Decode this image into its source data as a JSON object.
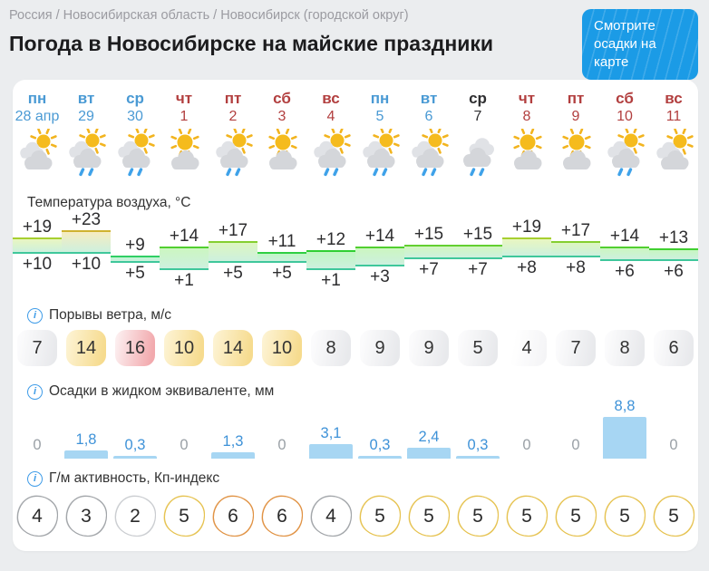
{
  "page": {
    "breadcrumb": "Россия / Новосибирская область / Новосибирск (городской округ)",
    "title": "Погода в Новосибирске на майские праздники",
    "map_button": "Смотрите осадки на карте"
  },
  "icons": {
    "info_glyph": "i"
  },
  "colors": {
    "page_background": "#ebedef",
    "card_background": "#ffffff",
    "accent_blue": "#1b9be6",
    "weekday_blue": "#4a9ad4",
    "weekend_red": "#b23f3f",
    "today_black": "#2e2e30",
    "precip_bar": "#a7d6f3",
    "precip_text": "#3e92d8",
    "temp_low_line": "#3fc79b"
  },
  "sections": {
    "temperature": "Температура воздуха, °C",
    "wind": "Порывы ветра, м/с",
    "precipitation": "Осадки в жидком эквиваленте, мм",
    "geomagnetic": "Г/м активность, Кп-индекс"
  },
  "days": [
    {
      "dow": "пн",
      "date": "28 апр",
      "color": "weekday",
      "icon": "sun-clouds",
      "high": "+19",
      "low": "+10",
      "wind": 7,
      "wind_level": "gray",
      "precip": "0",
      "precip_value": 0,
      "kp": 4,
      "kp_level": "gray"
    },
    {
      "dow": "вт",
      "date": "29",
      "color": "weekday",
      "icon": "sun-clouds-rain",
      "high": "+23",
      "low": "+10",
      "wind": 14,
      "wind_level": "yellow",
      "precip": "1,8",
      "precip_value": 1.8,
      "kp": 3,
      "kp_level": "gray"
    },
    {
      "dow": "ср",
      "date": "30",
      "color": "weekday",
      "icon": "sun-clouds-rain",
      "high": "+9",
      "low": "+5",
      "wind": 16,
      "wind_level": "red",
      "precip": "0,3",
      "precip_value": 0.3,
      "kp": 2,
      "kp_level": "gray-light"
    },
    {
      "dow": "чт",
      "date": "1",
      "color": "weekend",
      "icon": "sun-cloud",
      "high": "+14",
      "low": "+1",
      "wind": 10,
      "wind_level": "yellow",
      "precip": "0",
      "precip_value": 0,
      "kp": 5,
      "kp_level": "yellow"
    },
    {
      "dow": "пт",
      "date": "2",
      "color": "weekend",
      "icon": "sun-clouds-rain",
      "high": "+17",
      "low": "+5",
      "wind": 14,
      "wind_level": "yellow",
      "precip": "1,3",
      "precip_value": 1.3,
      "kp": 6,
      "kp_level": "orange"
    },
    {
      "dow": "сб",
      "date": "3",
      "color": "weekend",
      "icon": "sun-cloud",
      "high": "+11",
      "low": "+5",
      "wind": 10,
      "wind_level": "yellow",
      "precip": "0",
      "precip_value": 0,
      "kp": 6,
      "kp_level": "orange"
    },
    {
      "dow": "вс",
      "date": "4",
      "color": "weekend",
      "icon": "sun-clouds-rain",
      "high": "+12",
      "low": "+1",
      "wind": 8,
      "wind_level": "gray",
      "precip": "3,1",
      "precip_value": 3.1,
      "kp": 4,
      "kp_level": "gray"
    },
    {
      "dow": "пн",
      "date": "5",
      "color": "weekday",
      "icon": "sun-clouds-rain",
      "high": "+14",
      "low": "+3",
      "wind": 9,
      "wind_level": "gray",
      "precip": "0,3",
      "precip_value": 0.3,
      "kp": 5,
      "kp_level": "yellow"
    },
    {
      "dow": "вт",
      "date": "6",
      "color": "weekday",
      "icon": "sun-clouds-rain",
      "high": "+15",
      "low": "+7",
      "wind": 9,
      "wind_level": "gray",
      "precip": "2,4",
      "precip_value": 2.4,
      "kp": 5,
      "kp_level": "yellow"
    },
    {
      "dow": "ср",
      "date": "7",
      "color": "today",
      "icon": "clouds-rain",
      "high": "+15",
      "low": "+7",
      "wind": 5,
      "wind_level": "gray",
      "precip": "0,3",
      "precip_value": 0.3,
      "kp": 5,
      "kp_level": "yellow"
    },
    {
      "dow": "чт",
      "date": "8",
      "color": "weekend",
      "icon": "sun-cloud",
      "high": "+19",
      "low": "+8",
      "wind": 4,
      "wind_level": "white",
      "precip": "0",
      "precip_value": 0,
      "kp": 5,
      "kp_level": "yellow"
    },
    {
      "dow": "пт",
      "date": "9",
      "color": "weekend",
      "icon": "sun-cloud",
      "high": "+17",
      "low": "+8",
      "wind": 7,
      "wind_level": "gray",
      "precip": "0",
      "precip_value": 0,
      "kp": 5,
      "kp_level": "yellow"
    },
    {
      "dow": "сб",
      "date": "10",
      "color": "weekend",
      "icon": "sun-clouds-rain",
      "high": "+14",
      "low": "+6",
      "wind": 8,
      "wind_level": "gray",
      "precip": "8,8",
      "precip_value": 8.8,
      "kp": 5,
      "kp_level": "yellow"
    },
    {
      "dow": "вс",
      "date": "11",
      "color": "weekend",
      "icon": "sun-clouds",
      "high": "+13",
      "low": "+6",
      "wind": 6,
      "wind_level": "gray",
      "precip": "0",
      "precip_value": 0,
      "kp": 5,
      "kp_level": "yellow"
    }
  ],
  "chart_data": [
    {
      "type": "area",
      "title": "Температура воздуха, °C",
      "x": [
        "пн 28 апр",
        "вт 29",
        "ср 30",
        "чт 1",
        "пт 2",
        "сб 3",
        "вс 4",
        "пн 5",
        "вт 6",
        "ср 7",
        "чт 8",
        "пт 9",
        "сб 10",
        "вс 11"
      ],
      "series": [
        {
          "name": "максимальная температура",
          "values": [
            19,
            23,
            9,
            14,
            17,
            11,
            12,
            14,
            15,
            15,
            19,
            17,
            14,
            13
          ]
        },
        {
          "name": "минимальная температура",
          "values": [
            10,
            10,
            5,
            1,
            5,
            5,
            1,
            3,
            7,
            7,
            8,
            8,
            6,
            6
          ]
        }
      ],
      "ylim": [
        0,
        24
      ],
      "grid": false,
      "legend": "none"
    },
    {
      "type": "bar",
      "title": "Порывы ветра, м/с",
      "categories": [
        "пн 28 апр",
        "вт 29",
        "ср 30",
        "чт 1",
        "пт 2",
        "сб 3",
        "вс 4",
        "пн 5",
        "вт 6",
        "ср 7",
        "чт 8",
        "пт 9",
        "сб 10",
        "вс 11"
      ],
      "values": [
        7,
        14,
        16,
        10,
        14,
        10,
        8,
        9,
        9,
        5,
        4,
        7,
        8,
        6
      ]
    },
    {
      "type": "bar",
      "title": "Осадки в жидком эквиваленте, мм",
      "categories": [
        "пн 28 апр",
        "вт 29",
        "ср 30",
        "чт 1",
        "пт 2",
        "сб 3",
        "вс 4",
        "пн 5",
        "вт 6",
        "ср 7",
        "чт 8",
        "пт 9",
        "сб 10",
        "вс 11"
      ],
      "values": [
        0,
        1.8,
        0.3,
        0,
        1.3,
        0,
        3.1,
        0.3,
        2.4,
        0.3,
        0,
        0,
        8.8,
        0
      ],
      "value_labels": [
        "0",
        "1,8",
        "0,3",
        "0",
        "1,3",
        "0",
        "3,1",
        "0,3",
        "2,4",
        "0,3",
        "0",
        "0",
        "8,8",
        "0"
      ]
    },
    {
      "type": "bar",
      "title": "Г/м активность, Кп-индекс",
      "categories": [
        "пн 28 апр",
        "вт 29",
        "ср 30",
        "чт 1",
        "пт 2",
        "сб 3",
        "вс 4",
        "пн 5",
        "вт 6",
        "ср 7",
        "чт 8",
        "пт 9",
        "сб 10",
        "вс 11"
      ],
      "values": [
        4,
        3,
        2,
        5,
        6,
        6,
        4,
        5,
        5,
        5,
        5,
        5,
        5,
        5
      ]
    }
  ]
}
